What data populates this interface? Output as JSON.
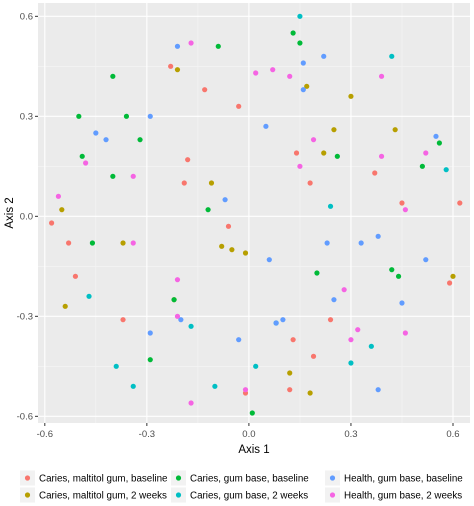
{
  "chart_data": {
    "type": "scatter",
    "xlabel": "Axis 1",
    "ylabel": "Axis 2",
    "xlim": [
      -0.62,
      0.65
    ],
    "ylim": [
      -0.62,
      0.64
    ],
    "x_ticks": [
      -0.6,
      -0.3,
      0.0,
      0.3,
      0.6
    ],
    "y_ticks": [
      -0.6,
      -0.3,
      0.0,
      0.3,
      0.6
    ],
    "x_tick_labels": [
      "-0.6",
      "-0.3",
      "0.0",
      "0.3",
      "0.6"
    ],
    "y_tick_labels": [
      "-0.6",
      "-0.3",
      "0.0",
      "0.3",
      "0.6"
    ],
    "grid": true,
    "legend_position": "bottom",
    "series": [
      {
        "name": "Caries, maltitol gum, baseline",
        "color": "#F8766D",
        "points": [
          [
            -0.58,
            -0.02
          ],
          [
            -0.53,
            -0.08
          ],
          [
            -0.51,
            -0.18
          ],
          [
            -0.37,
            -0.31
          ],
          [
            -0.23,
            0.45
          ],
          [
            -0.19,
            0.1
          ],
          [
            -0.18,
            0.17
          ],
          [
            -0.13,
            0.38
          ],
          [
            -0.03,
            0.33
          ],
          [
            -0.01,
            -0.53
          ],
          [
            0.14,
            0.19
          ],
          [
            0.13,
            -0.37
          ],
          [
            0.12,
            -0.52
          ],
          [
            0.19,
            -0.42
          ],
          [
            0.37,
            0.13
          ],
          [
            0.45,
            0.04
          ],
          [
            0.62,
            0.04
          ],
          [
            0.59,
            -0.2
          ],
          [
            0.24,
            -0.31
          ],
          [
            -0.06,
            -0.03
          ],
          [
            0.18,
            0.1
          ]
        ]
      },
      {
        "name": "Caries, maltitol gum, 2 weeks",
        "color": "#B79F00",
        "points": [
          [
            -0.55,
            0.02
          ],
          [
            -0.54,
            -0.27
          ],
          [
            -0.37,
            -0.08
          ],
          [
            -0.22,
            -0.25
          ],
          [
            -0.21,
            0.44
          ],
          [
            -0.11,
            0.1
          ],
          [
            -0.08,
            -0.09
          ],
          [
            -0.05,
            -0.1
          ],
          [
            -0.01,
            -0.11
          ],
          [
            0.12,
            -0.47
          ],
          [
            0.17,
            0.39
          ],
          [
            0.22,
            0.19
          ],
          [
            0.25,
            0.26
          ],
          [
            0.3,
            0.36
          ],
          [
            0.43,
            0.26
          ],
          [
            0.6,
            -0.18
          ],
          [
            0.18,
            -0.53
          ]
        ]
      },
      {
        "name": "Caries, gum base, baseline",
        "color": "#00BA38",
        "points": [
          [
            -0.5,
            0.3
          ],
          [
            -0.49,
            0.18
          ],
          [
            -0.46,
            -0.08
          ],
          [
            -0.4,
            0.12
          ],
          [
            -0.4,
            0.42
          ],
          [
            -0.36,
            0.3
          ],
          [
            -0.32,
            0.23
          ],
          [
            -0.29,
            -0.43
          ],
          [
            -0.22,
            -0.25
          ],
          [
            -0.12,
            0.02
          ],
          [
            -0.09,
            0.51
          ],
          [
            0.01,
            -0.59
          ],
          [
            0.13,
            0.55
          ],
          [
            0.15,
            0.52
          ],
          [
            0.2,
            -0.17
          ],
          [
            0.26,
            0.18
          ],
          [
            0.42,
            -0.16
          ],
          [
            0.44,
            -0.18
          ],
          [
            0.51,
            0.15
          ],
          [
            0.56,
            0.22
          ]
        ]
      },
      {
        "name": "Caries, gum base, 2 weeks",
        "color": "#00BFC4",
        "points": [
          [
            -0.47,
            -0.24
          ],
          [
            -0.39,
            -0.45
          ],
          [
            -0.34,
            -0.51
          ],
          [
            -0.17,
            -0.33
          ],
          [
            -0.1,
            -0.51
          ],
          [
            0.02,
            -0.45
          ],
          [
            0.08,
            -0.32
          ],
          [
            0.15,
            0.6
          ],
          [
            0.24,
            0.03
          ],
          [
            0.3,
            -0.44
          ],
          [
            0.36,
            -0.39
          ],
          [
            0.42,
            0.48
          ],
          [
            0.58,
            0.14
          ]
        ]
      },
      {
        "name": "Health, gum base, baseline",
        "color": "#619CFF",
        "points": [
          [
            -0.45,
            0.25
          ],
          [
            -0.42,
            0.23
          ],
          [
            -0.29,
            0.3
          ],
          [
            -0.21,
            0.51
          ],
          [
            -0.29,
            -0.35
          ],
          [
            -0.2,
            -0.31
          ],
          [
            -0.07,
            0.05
          ],
          [
            -0.03,
            -0.37
          ],
          [
            0.05,
            0.27
          ],
          [
            0.06,
            -0.13
          ],
          [
            0.08,
            -0.32
          ],
          [
            0.16,
            0.38
          ],
          [
            0.22,
            0.48
          ],
          [
            0.23,
            -0.08
          ],
          [
            0.38,
            -0.06
          ],
          [
            0.45,
            -0.26
          ],
          [
            0.52,
            -0.13
          ],
          [
            0.55,
            0.24
          ],
          [
            0.33,
            -0.08
          ],
          [
            0.1,
            -0.31
          ],
          [
            0.38,
            -0.52
          ],
          [
            0.25,
            -0.25
          ],
          [
            0.16,
            0.46
          ]
        ]
      },
      {
        "name": "Health, gum base, 2 weeks",
        "color": "#F564E3",
        "points": [
          [
            -0.56,
            0.06
          ],
          [
            -0.48,
            0.16
          ],
          [
            -0.34,
            0.12
          ],
          [
            -0.34,
            -0.08
          ],
          [
            -0.21,
            -0.19
          ],
          [
            -0.21,
            -0.3
          ],
          [
            -0.17,
            0.52
          ],
          [
            -0.17,
            -0.56
          ],
          [
            -0.01,
            -0.52
          ],
          [
            0.02,
            0.43
          ],
          [
            0.07,
            0.44
          ],
          [
            0.15,
            0.15
          ],
          [
            0.28,
            -0.22
          ],
          [
            0.32,
            -0.34
          ],
          [
            0.39,
            0.42
          ],
          [
            0.39,
            0.18
          ],
          [
            0.52,
            0.19
          ],
          [
            0.46,
            0.02
          ],
          [
            0.46,
            -0.35
          ],
          [
            0.12,
            0.42
          ],
          [
            0.19,
            0.23
          ],
          [
            0.3,
            -0.37
          ]
        ]
      }
    ]
  }
}
